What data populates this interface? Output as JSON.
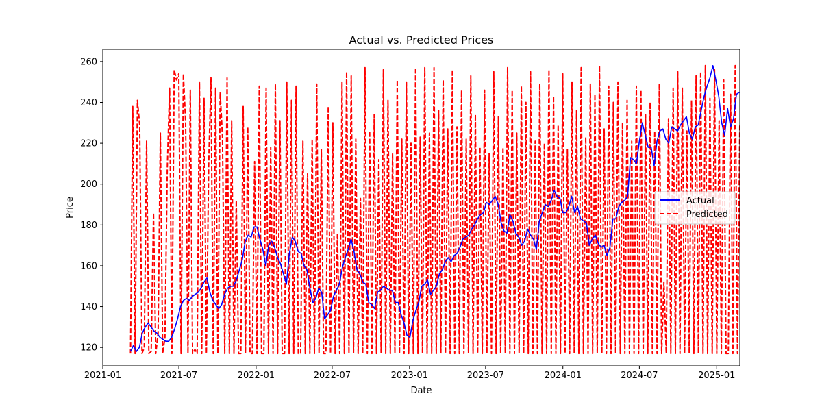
{
  "chart_data": {
    "type": "line",
    "title": "Actual vs. Predicted Prices",
    "xlabel": "Date",
    "ylabel": "Price",
    "x_range": [
      "2021-01-01",
      "2025-02-25"
    ],
    "ylim": [
      111,
      266
    ],
    "x_ticks": [
      "2021-01",
      "2021-07",
      "2022-01",
      "2022-07",
      "2023-01",
      "2023-07",
      "2024-01",
      "2024-07",
      "2025-01"
    ],
    "y_ticks": [
      120,
      140,
      160,
      180,
      200,
      220,
      240,
      260
    ],
    "grid": false,
    "legend_position": "center-right",
    "series": [
      {
        "name": "Actual",
        "color": "#0000ff",
        "style": "solid",
        "points": [
          [
            "2021-03-08",
            118
          ],
          [
            "2021-03-15",
            121
          ],
          [
            "2021-03-22",
            118
          ],
          [
            "2021-03-29",
            120
          ],
          [
            "2021-04-05",
            127
          ],
          [
            "2021-04-12",
            130
          ],
          [
            "2021-04-19",
            132
          ],
          [
            "2021-04-26",
            130
          ],
          [
            "2021-05-03",
            128
          ],
          [
            "2021-05-10",
            127
          ],
          [
            "2021-05-17",
            125
          ],
          [
            "2021-05-24",
            124
          ],
          [
            "2021-05-31",
            123
          ],
          [
            "2021-06-07",
            123
          ],
          [
            "2021-06-14",
            125
          ],
          [
            "2021-06-21",
            129
          ],
          [
            "2021-06-28",
            134
          ],
          [
            "2021-07-05",
            140
          ],
          [
            "2021-07-12",
            143
          ],
          [
            "2021-07-19",
            144
          ],
          [
            "2021-07-26",
            143
          ],
          [
            "2021-08-02",
            145
          ],
          [
            "2021-08-09",
            146
          ],
          [
            "2021-08-16",
            147
          ],
          [
            "2021-08-23",
            149
          ],
          [
            "2021-08-30",
            152
          ],
          [
            "2021-09-06",
            154
          ],
          [
            "2021-09-13",
            147
          ],
          [
            "2021-09-20",
            143
          ],
          [
            "2021-09-27",
            141
          ],
          [
            "2021-10-04",
            139
          ],
          [
            "2021-10-11",
            141
          ],
          [
            "2021-10-18",
            146
          ],
          [
            "2021-10-25",
            149
          ],
          [
            "2021-11-01",
            150
          ],
          [
            "2021-11-08",
            150
          ],
          [
            "2021-11-15",
            153
          ],
          [
            "2021-11-22",
            158
          ],
          [
            "2021-11-29",
            163
          ],
          [
            "2021-12-06",
            172
          ],
          [
            "2021-12-13",
            175
          ],
          [
            "2021-12-20",
            174
          ],
          [
            "2021-12-27",
            179
          ],
          [
            "2022-01-03",
            179
          ],
          [
            "2022-01-10",
            173
          ],
          [
            "2022-01-17",
            168
          ],
          [
            "2022-01-24",
            160
          ],
          [
            "2022-01-31",
            170
          ],
          [
            "2022-02-07",
            172
          ],
          [
            "2022-02-14",
            169
          ],
          [
            "2022-02-21",
            164
          ],
          [
            "2022-02-28",
            161
          ],
          [
            "2022-03-07",
            156
          ],
          [
            "2022-03-14",
            151
          ],
          [
            "2022-03-21",
            166
          ],
          [
            "2022-03-28",
            174
          ],
          [
            "2022-04-04",
            172
          ],
          [
            "2022-04-11",
            167
          ],
          [
            "2022-04-18",
            166
          ],
          [
            "2022-04-25",
            160
          ],
          [
            "2022-05-02",
            158
          ],
          [
            "2022-05-09",
            149
          ],
          [
            "2022-05-16",
            142
          ],
          [
            "2022-05-23",
            144
          ],
          [
            "2022-05-30",
            149
          ],
          [
            "2022-06-06",
            147
          ],
          [
            "2022-06-13",
            134
          ],
          [
            "2022-06-20",
            136
          ],
          [
            "2022-06-27",
            138
          ],
          [
            "2022-07-04",
            145
          ],
          [
            "2022-07-11",
            148
          ],
          [
            "2022-07-18",
            151
          ],
          [
            "2022-07-25",
            159
          ],
          [
            "2022-08-01",
            164
          ],
          [
            "2022-08-08",
            168
          ],
          [
            "2022-08-15",
            173
          ],
          [
            "2022-08-22",
            167
          ],
          [
            "2022-08-29",
            158
          ],
          [
            "2022-09-05",
            156
          ],
          [
            "2022-09-12",
            152
          ],
          [
            "2022-09-19",
            151
          ],
          [
            "2022-09-26",
            142
          ],
          [
            "2022-10-03",
            141
          ],
          [
            "2022-10-10",
            139
          ],
          [
            "2022-10-17",
            147
          ],
          [
            "2022-10-24",
            148
          ],
          [
            "2022-10-31",
            150
          ],
          [
            "2022-11-07",
            149
          ],
          [
            "2022-11-14",
            148
          ],
          [
            "2022-11-21",
            148
          ],
          [
            "2022-11-28",
            142
          ],
          [
            "2022-12-05",
            142
          ],
          [
            "2022-12-12",
            136
          ],
          [
            "2022-12-19",
            132
          ],
          [
            "2022-12-26",
            126
          ],
          [
            "2023-01-02",
            125
          ],
          [
            "2023-01-09",
            133
          ],
          [
            "2023-01-16",
            138
          ],
          [
            "2023-01-23",
            142
          ],
          [
            "2023-01-30",
            150
          ],
          [
            "2023-02-06",
            151
          ],
          [
            "2023-02-13",
            153
          ],
          [
            "2023-02-20",
            146
          ],
          [
            "2023-02-27",
            148
          ],
          [
            "2023-03-06",
            150
          ],
          [
            "2023-03-13",
            156
          ],
          [
            "2023-03-20",
            158
          ],
          [
            "2023-03-27",
            162
          ],
          [
            "2023-04-03",
            164
          ],
          [
            "2023-04-10",
            162
          ],
          [
            "2023-04-17",
            165
          ],
          [
            "2023-04-24",
            166
          ],
          [
            "2023-05-01",
            169
          ],
          [
            "2023-05-08",
            173
          ],
          [
            "2023-05-15",
            174
          ],
          [
            "2023-05-22",
            175
          ],
          [
            "2023-05-29",
            178
          ],
          [
            "2023-06-05",
            180
          ],
          [
            "2023-06-12",
            183
          ],
          [
            "2023-06-19",
            185
          ],
          [
            "2023-06-26",
            186
          ],
          [
            "2023-07-03",
            191
          ],
          [
            "2023-07-10",
            190
          ],
          [
            "2023-07-17",
            192
          ],
          [
            "2023-07-24",
            194
          ],
          [
            "2023-07-31",
            190
          ],
          [
            "2023-08-07",
            181
          ],
          [
            "2023-08-14",
            177
          ],
          [
            "2023-08-21",
            176
          ],
          [
            "2023-08-28",
            185
          ],
          [
            "2023-09-04",
            182
          ],
          [
            "2023-09-11",
            176
          ],
          [
            "2023-09-18",
            174
          ],
          [
            "2023-09-25",
            170
          ],
          [
            "2023-10-02",
            172
          ],
          [
            "2023-10-09",
            178
          ],
          [
            "2023-10-16",
            175
          ],
          [
            "2023-10-23",
            173
          ],
          [
            "2023-10-30",
            168
          ],
          [
            "2023-11-06",
            182
          ],
          [
            "2023-11-13",
            186
          ],
          [
            "2023-11-20",
            190
          ],
          [
            "2023-11-27",
            189
          ],
          [
            "2023-12-04",
            192
          ],
          [
            "2023-12-11",
            197
          ],
          [
            "2023-12-18",
            194
          ],
          [
            "2023-12-25",
            193
          ],
          [
            "2024-01-01",
            186
          ],
          [
            "2024-01-08",
            186
          ],
          [
            "2024-01-15",
            189
          ],
          [
            "2024-01-22",
            194
          ],
          [
            "2024-01-29",
            186
          ],
          [
            "2024-02-05",
            189
          ],
          [
            "2024-02-12",
            183
          ],
          [
            "2024-02-19",
            182
          ],
          [
            "2024-02-26",
            181
          ],
          [
            "2024-03-04",
            170
          ],
          [
            "2024-03-11",
            173
          ],
          [
            "2024-03-18",
            175
          ],
          [
            "2024-03-25",
            171
          ],
          [
            "2024-04-01",
            169
          ],
          [
            "2024-04-08",
            170
          ],
          [
            "2024-04-15",
            165
          ],
          [
            "2024-04-22",
            169
          ],
          [
            "2024-04-29",
            183
          ],
          [
            "2024-05-06",
            183
          ],
          [
            "2024-05-13",
            189
          ],
          [
            "2024-05-20",
            191
          ],
          [
            "2024-05-27",
            192
          ],
          [
            "2024-06-03",
            194
          ],
          [
            "2024-06-10",
            213
          ],
          [
            "2024-06-17",
            212
          ],
          [
            "2024-06-24",
            210
          ],
          [
            "2024-07-01",
            221
          ],
          [
            "2024-07-08",
            230
          ],
          [
            "2024-07-15",
            224
          ],
          [
            "2024-07-22",
            218
          ],
          [
            "2024-07-29",
            218
          ],
          [
            "2024-08-05",
            209
          ],
          [
            "2024-08-12",
            221
          ],
          [
            "2024-08-19",
            226
          ],
          [
            "2024-08-26",
            227
          ],
          [
            "2024-09-02",
            222
          ],
          [
            "2024-09-09",
            220
          ],
          [
            "2024-09-16",
            228
          ],
          [
            "2024-09-23",
            227
          ],
          [
            "2024-09-30",
            226
          ],
          [
            "2024-10-07",
            229
          ],
          [
            "2024-10-14",
            231
          ],
          [
            "2024-10-21",
            233
          ],
          [
            "2024-10-28",
            225
          ],
          [
            "2024-11-04",
            222
          ],
          [
            "2024-11-11",
            228
          ],
          [
            "2024-11-18",
            229
          ],
          [
            "2024-11-25",
            236
          ],
          [
            "2024-12-02",
            243
          ],
          [
            "2024-12-09",
            248
          ],
          [
            "2024-12-16",
            252
          ],
          [
            "2024-12-23",
            258
          ],
          [
            "2024-12-30",
            251
          ],
          [
            "2025-01-06",
            243
          ],
          [
            "2025-01-13",
            230
          ],
          [
            "2025-01-20",
            224
          ],
          [
            "2025-01-27",
            237
          ],
          [
            "2025-02-03",
            228
          ],
          [
            "2025-02-10",
            232
          ],
          [
            "2025-02-17",
            244
          ],
          [
            "2025-02-24",
            245
          ]
        ]
      },
      {
        "name": "Predicted",
        "color": "#ff0000",
        "style": "dashed",
        "start": "2021-03-08",
        "end": "2025-02-25",
        "min": 117,
        "max": 258,
        "values": [
          117,
          238,
          117,
          241,
          229,
          117,
          120,
          221,
          117,
          118,
          186,
          117,
          127,
          225,
          117,
          125,
          208,
          247,
          117,
          256,
          251,
          254,
          117,
          254,
          230,
          117,
          246,
          117,
          119,
          117,
          250,
          117,
          242,
          117,
          209,
          252,
          117,
          247,
          117,
          245,
          223,
          117,
          252,
          117,
          231,
          117,
          192,
          117,
          117,
          238,
          117,
          228,
          117,
          117,
          211,
          117,
          248,
          117,
          117,
          247,
          117,
          218,
          117,
          249,
          117,
          231,
          117,
          117,
          250,
          117,
          241,
          117,
          248,
          117,
          117,
          221,
          117,
          205,
          117,
          222,
          117,
          249,
          117,
          217,
          117,
          117,
          238,
          117,
          230,
          117,
          176,
          117,
          250,
          117,
          255,
          117,
          253,
          117,
          222,
          117,
          193,
          117,
          257,
          117,
          226,
          117,
          234,
          117,
          212,
          117,
          256,
          117,
          241,
          117,
          215,
          117,
          251,
          117,
          222,
          117,
          250,
          117,
          220,
          117,
          257,
          117,
          223,
          117,
          257,
          117,
          225,
          117,
          257,
          117,
          236,
          117,
          251,
          117,
          227,
          117,
          256,
          117,
          228,
          117,
          246,
          117,
          222,
          117,
          253,
          117,
          234,
          117,
          218,
          117,
          246,
          117,
          215,
          117,
          255,
          117,
          233,
          117,
          218,
          117,
          257,
          117,
          246,
          117,
          225,
          117,
          248,
          117,
          240,
          117,
          255,
          117,
          221,
          117,
          249,
          117,
          220,
          117,
          256,
          117,
          243,
          117,
          229,
          117,
          254,
          117,
          217,
          117,
          250,
          117,
          236,
          117,
          257,
          117,
          223,
          117,
          249,
          117,
          244,
          117,
          258,
          117,
          227,
          117,
          248,
          117,
          240,
          117,
          250,
          117,
          230,
          117,
          241,
          117,
          221,
          117,
          248,
          117,
          246,
          117,
          234,
          117,
          240,
          117,
          226,
          117,
          249,
          117,
          152,
          117,
          232,
          117,
          247,
          117,
          255,
          117,
          247,
          117,
          226,
          117,
          241,
          117,
          253,
          117,
          255,
          117,
          258,
          117,
          242,
          117,
          256,
          117,
          231,
          117,
          251,
          117,
          117,
          244,
          117,
          258,
          117,
          229
        ]
      }
    ]
  }
}
